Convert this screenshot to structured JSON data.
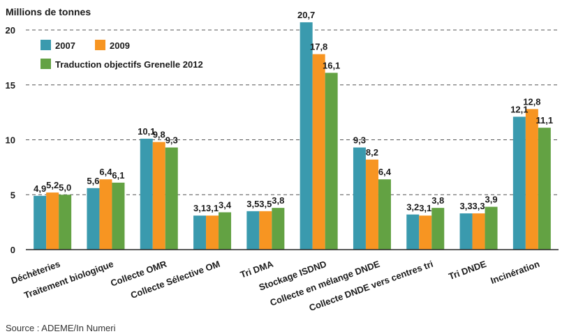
{
  "chart_data": {
    "type": "bar",
    "ylabel": "Millions de tonnes",
    "ylim": [
      0,
      20
    ],
    "yticks": [
      "0",
      "5",
      "10",
      "15",
      "20"
    ],
    "grid": true,
    "legend_position": "top-left",
    "categories": [
      "Déchèteries",
      "Traitement biologique",
      "Collecte OMR",
      "Collecte Sélective OM",
      "Tri DMA",
      "Stockage ISDND",
      "Collecte en mélange DNDE",
      "Collecte DNDE vers centres tri",
      "Tri DNDE",
      "Incinération"
    ],
    "series": [
      {
        "name": "2007",
        "color": "#3a9aae",
        "values": [
          4.9,
          5.6,
          10.1,
          3.1,
          3.5,
          20.7,
          9.3,
          3.2,
          3.3,
          12.1
        ],
        "labels": [
          "4,9",
          "5,6",
          "10,1",
          "3,1",
          "3,5",
          "20,7",
          "9,3",
          "3,2",
          "3,3",
          "12,1"
        ]
      },
      {
        "name": "2009",
        "color": "#f79522",
        "values": [
          5.2,
          6.4,
          9.8,
          3.1,
          3.5,
          17.8,
          8.2,
          3.1,
          3.3,
          12.8
        ],
        "labels": [
          "5,2",
          "6,4",
          "9,8",
          "3,1",
          "3,5",
          "17,8",
          "8,2",
          "3,1",
          "3,3",
          "12,8"
        ]
      },
      {
        "name": "Traduction objectifs Grenelle 2012",
        "color": "#63a243",
        "values": [
          5.0,
          6.1,
          9.3,
          3.4,
          3.8,
          16.1,
          6.4,
          3.8,
          3.9,
          11.1
        ],
        "labels": [
          "5,0",
          "6,1",
          "9,3",
          "3,4",
          "3,8",
          "16,1",
          "6,4",
          "3,8",
          "3,9",
          "11,1"
        ]
      }
    ],
    "source": "Source : ADEME/In Numeri"
  }
}
